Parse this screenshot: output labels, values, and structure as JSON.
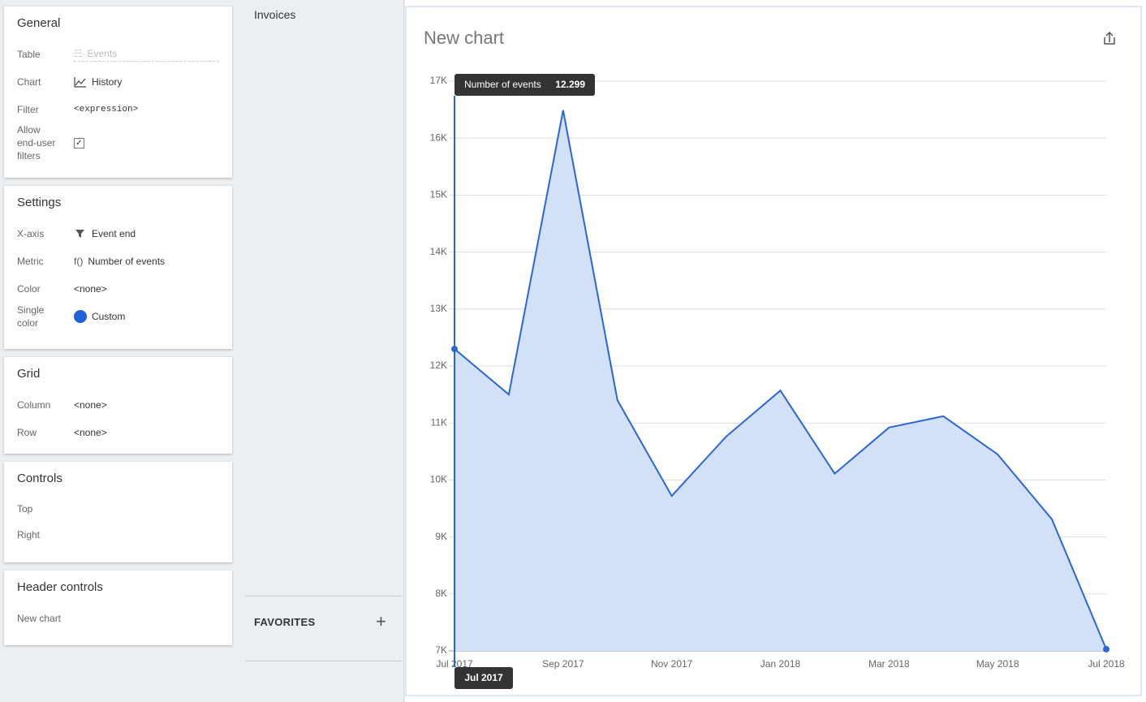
{
  "sidebar": [
    {
      "title": "General",
      "rows": [
        {
          "label": "Table",
          "value": "Events"
        },
        {
          "label": "Chart",
          "value": "History"
        },
        {
          "label": "Filter",
          "value": "<expression>"
        },
        {
          "label": "Allow end-user filters",
          "checked": true
        }
      ]
    },
    {
      "title": "Settings",
      "rows": [
        {
          "label": "X-axis",
          "value": "Event end"
        },
        {
          "label": "Metric",
          "icon": "f()",
          "value": "Number of events"
        },
        {
          "label": "Color",
          "value": "<none>"
        },
        {
          "label": "Single color",
          "value": "Custom",
          "color": "#1e62d9"
        }
      ]
    },
    {
      "title": "Grid",
      "rows": [
        {
          "label": "Column",
          "value": "<none>"
        },
        {
          "label": "Row",
          "value": "<none>"
        }
      ]
    },
    {
      "title": "Controls",
      "rows": [
        {
          "label": "Top"
        },
        {
          "label": "Right"
        }
      ]
    },
    {
      "title": "Header controls",
      "rows": [
        {
          "label": "New chart"
        }
      ]
    }
  ],
  "nav": {
    "item": "Invoices",
    "favorites": "FAVORITES"
  },
  "chart_data": {
    "type": "area",
    "title": "New chart",
    "categories": [
      "Jul 2017",
      null,
      "Sep 2017",
      null,
      "Nov 2017",
      null,
      "Jan 2018",
      null,
      "Mar 2018",
      null,
      "May 2018",
      null,
      "Jul 2018"
    ],
    "series": [
      {
        "name": "Number of events",
        "color": "#2a65d9",
        "fill": "#d3e1f8",
        "values": [
          12299,
          11500,
          16490,
          11400,
          9720,
          10760,
          11570,
          10110,
          10920,
          11120,
          10450,
          9310,
          7030
        ],
        "value_labels": [
          "12.299",
          null,
          null,
          null,
          null,
          null,
          null,
          null,
          null,
          null,
          null,
          null,
          null
        ]
      }
    ],
    "ylim": [
      7000,
      17000
    ],
    "yticks": [
      {
        "value": 7000,
        "label": "7K"
      },
      {
        "value": 8000,
        "label": "8K"
      },
      {
        "value": 9000,
        "label": "9K"
      },
      {
        "value": 10000,
        "label": "10K"
      },
      {
        "value": 11000,
        "label": "11K"
      },
      {
        "value": 12000,
        "label": "12K"
      },
      {
        "value": 13000,
        "label": "13K"
      },
      {
        "value": 14000,
        "label": "14K"
      },
      {
        "value": 15000,
        "label": "15K"
      },
      {
        "value": 16000,
        "label": "16K"
      },
      {
        "value": 17000,
        "label": "17K"
      }
    ],
    "grid": true
  }
}
